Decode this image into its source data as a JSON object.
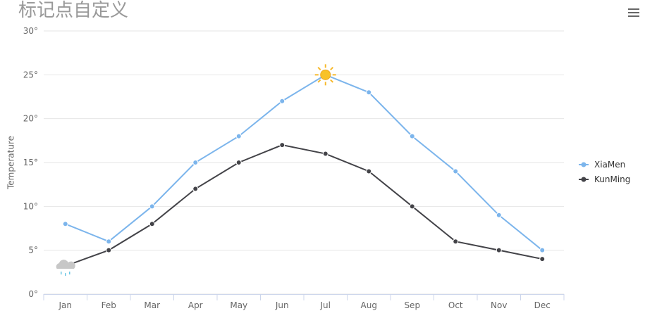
{
  "title": "标记点自定义",
  "menu_icon": "hamburger-icon",
  "chart_data": {
    "type": "line",
    "title": "标记点自定义",
    "xlabel": "",
    "ylabel": "Temperature",
    "ylim": [
      0,
      30
    ],
    "yticks": [
      0,
      5,
      10,
      15,
      20,
      25,
      30
    ],
    "ytick_labels": [
      "0°",
      "5°",
      "10°",
      "15°",
      "20°",
      "25°",
      "30°"
    ],
    "categories": [
      "Jan",
      "Feb",
      "Mar",
      "Apr",
      "May",
      "Jun",
      "Jul",
      "Aug",
      "Sep",
      "Oct",
      "Nov",
      "Dec"
    ],
    "grid": true,
    "legend": "right",
    "series": [
      {
        "name": "XiaMen",
        "color": "#7cb5ec",
        "values": [
          8,
          6,
          10,
          15,
          18,
          22,
          25,
          23,
          18,
          14,
          9,
          5
        ],
        "special_marker": {
          "index": 6,
          "icon": "sun-icon"
        }
      },
      {
        "name": "KunMing",
        "color": "#434348",
        "values": [
          3.2,
          5,
          8,
          12,
          15,
          17,
          16,
          14,
          10,
          6,
          5,
          4
        ],
        "special_marker": {
          "index": 0,
          "icon": "rain-cloud-icon"
        }
      }
    ]
  }
}
